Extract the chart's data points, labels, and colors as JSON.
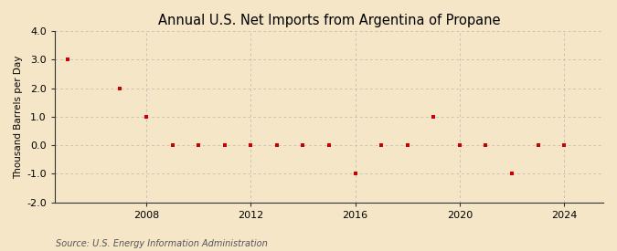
{
  "title": "Annual U.S. Net Imports from Argentina of Propane",
  "ylabel": "Thousand Barrels per Day",
  "source": "Source: U.S. Energy Information Administration",
  "background_color": "#f5e6c8",
  "plot_background_color": "#f5e6c8",
  "marker_color": "#cc0000",
  "grid_color": "#b0b0b0",
  "spine_color": "#333333",
  "ylim": [
    -2.0,
    4.0
  ],
  "yticks": [
    -2.0,
    -1.0,
    0.0,
    1.0,
    2.0,
    3.0,
    4.0
  ],
  "xlim": [
    2004.5,
    2025.5
  ],
  "xticks": [
    2008,
    2012,
    2016,
    2020,
    2024
  ],
  "years": [
    2005,
    2007,
    2008,
    2009,
    2010,
    2011,
    2012,
    2013,
    2014,
    2015,
    2016,
    2017,
    2018,
    2019,
    2020,
    2021,
    2022,
    2023,
    2024
  ],
  "values": [
    3.0,
    2.0,
    1.0,
    0.0,
    0.0,
    0.0,
    0.0,
    0.0,
    0.0,
    0.0,
    -1.0,
    0.0,
    0.0,
    1.0,
    0.0,
    0.0,
    -1.0,
    0.0,
    0.0
  ],
  "title_fontsize": 10.5,
  "label_fontsize": 7.5,
  "tick_fontsize": 8,
  "source_fontsize": 7
}
